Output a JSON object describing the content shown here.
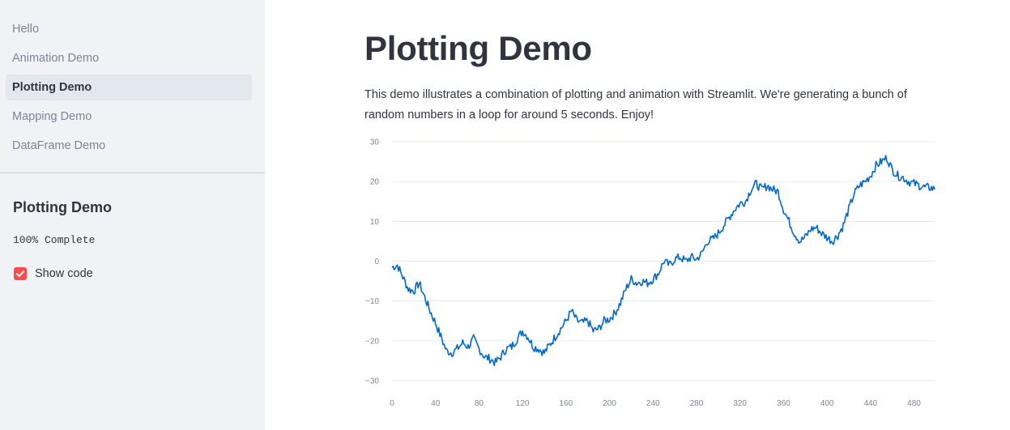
{
  "sidebar": {
    "nav_items": [
      {
        "label": "Hello",
        "active": false
      },
      {
        "label": "Animation Demo",
        "active": false
      },
      {
        "label": "Plotting Demo",
        "active": true
      },
      {
        "label": "Mapping Demo",
        "active": false
      },
      {
        "label": "DataFrame Demo",
        "active": false
      }
    ],
    "header": "Plotting Demo",
    "progress_text": "100% Complete",
    "show_code": {
      "label": "Show code",
      "checked": true,
      "accent_color": "#ff4b4b"
    }
  },
  "main": {
    "title": "Plotting Demo",
    "description": "This demo illustrates a combination of plotting and animation with Streamlit. We're generating a bunch of random numbers in a loop for around 5 seconds. Enjoy!"
  },
  "chart_data": {
    "type": "line",
    "line_color": "#0068c9",
    "grid": true,
    "xlim": [
      0,
      499
    ],
    "ylim": [
      -31,
      30
    ],
    "x_ticks": [
      "0",
      "40",
      "80",
      "120",
      "160",
      "200",
      "240",
      "280",
      "320",
      "360",
      "400",
      "440",
      "480"
    ],
    "y_ticks": [
      "30",
      "20",
      "10",
      "0",
      "−10",
      "−20",
      "−30"
    ],
    "anchors": [
      [
        0,
        -1.5
      ],
      [
        5,
        -1
      ],
      [
        10,
        -4
      ],
      [
        15,
        -7
      ],
      [
        20,
        -7.5
      ],
      [
        25,
        -5.5
      ],
      [
        30,
        -9
      ],
      [
        35,
        -12.5
      ],
      [
        40,
        -15.5
      ],
      [
        45,
        -19
      ],
      [
        50,
        -22.5
      ],
      [
        55,
        -23
      ],
      [
        60,
        -22
      ],
      [
        65,
        -20.5
      ],
      [
        70,
        -21.5
      ],
      [
        75,
        -19.5
      ],
      [
        80,
        -22
      ],
      [
        85,
        -24
      ],
      [
        90,
        -24.5
      ],
      [
        95,
        -25.5
      ],
      [
        100,
        -24
      ],
      [
        105,
        -22
      ],
      [
        110,
        -21.5
      ],
      [
        115,
        -19.5
      ],
      [
        120,
        -17.5
      ],
      [
        125,
        -19
      ],
      [
        130,
        -21.5
      ],
      [
        135,
        -22
      ],
      [
        140,
        -23
      ],
      [
        145,
        -21
      ],
      [
        150,
        -19
      ],
      [
        155,
        -17
      ],
      [
        160,
        -15
      ],
      [
        165,
        -12.5
      ],
      [
        170,
        -15
      ],
      [
        175,
        -15.5
      ],
      [
        180,
        -15
      ],
      [
        185,
        -17.5
      ],
      [
        190,
        -17
      ],
      [
        195,
        -15
      ],
      [
        200,
        -14.5
      ],
      [
        205,
        -13
      ],
      [
        210,
        -10.5
      ],
      [
        215,
        -7
      ],
      [
        220,
        -4.5
      ],
      [
        225,
        -5.5
      ],
      [
        230,
        -5
      ],
      [
        235,
        -5.5
      ],
      [
        240,
        -4.5
      ],
      [
        245,
        -3
      ],
      [
        250,
        0
      ],
      [
        255,
        -1
      ],
      [
        260,
        0.5
      ],
      [
        265,
        1
      ],
      [
        270,
        0
      ],
      [
        275,
        1
      ],
      [
        280,
        0.5
      ],
      [
        285,
        2
      ],
      [
        290,
        5
      ],
      [
        295,
        5.5
      ],
      [
        300,
        7
      ],
      [
        305,
        9
      ],
      [
        310,
        11
      ],
      [
        315,
        13
      ],
      [
        320,
        14.5
      ],
      [
        325,
        15
      ],
      [
        330,
        18
      ],
      [
        335,
        19.5
      ],
      [
        340,
        18
      ],
      [
        345,
        19
      ],
      [
        350,
        18
      ],
      [
        355,
        17.5
      ],
      [
        360,
        13
      ],
      [
        365,
        10
      ],
      [
        370,
        7
      ],
      [
        375,
        5
      ],
      [
        380,
        6
      ],
      [
        385,
        8
      ],
      [
        390,
        8.5
      ],
      [
        395,
        7
      ],
      [
        400,
        6
      ],
      [
        405,
        5
      ],
      [
        410,
        6.5
      ],
      [
        415,
        9
      ],
      [
        420,
        13
      ],
      [
        425,
        17
      ],
      [
        430,
        19
      ],
      [
        435,
        20
      ],
      [
        440,
        21.5
      ],
      [
        445,
        24
      ],
      [
        450,
        25
      ],
      [
        455,
        26
      ],
      [
        460,
        23
      ],
      [
        465,
        21.5
      ],
      [
        470,
        21
      ],
      [
        475,
        20
      ],
      [
        480,
        19.5
      ],
      [
        485,
        19
      ],
      [
        490,
        18.5
      ],
      [
        495,
        18.5
      ],
      [
        499,
        18
      ]
    ]
  }
}
